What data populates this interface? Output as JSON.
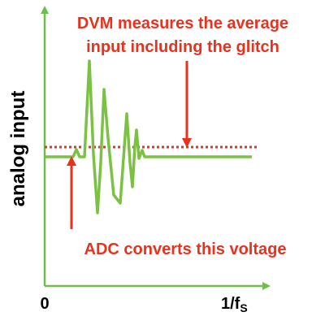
{
  "diagram": {
    "dvm_annotation": [
      "DVM measures the average",
      "input including the glitch"
    ],
    "y_axis_label": "analog input",
    "adc_annotation": "ADC converts this voltage",
    "x_axis": {
      "origin_label": "0",
      "end_label": "1/f",
      "end_label_subscript": "S"
    }
  }
}
